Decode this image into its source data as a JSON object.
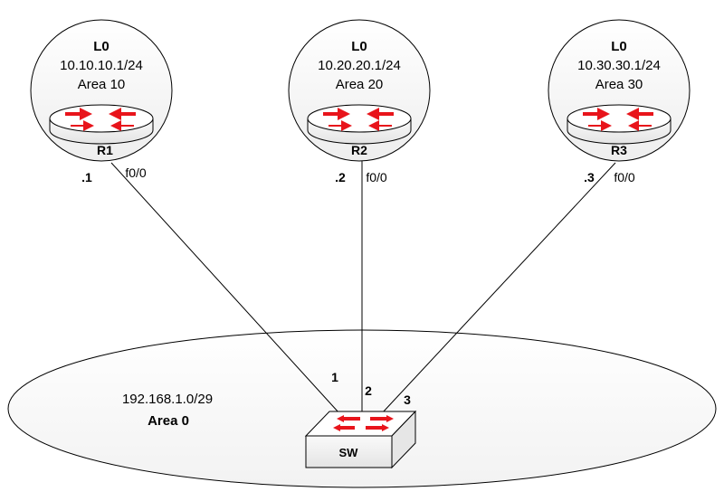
{
  "area0": {
    "network": "192.168.1.0/29",
    "name": "Area 0"
  },
  "routers": [
    {
      "name": "R1",
      "loopback": "L0",
      "lo_ip": "10.10.10.1/24",
      "lo_area": "Area 10",
      "host_octet": ".1",
      "interface": "f0/0",
      "switch_port": "1"
    },
    {
      "name": "R2",
      "loopback": "L0",
      "lo_ip": "10.20.20.1/24",
      "lo_area": "Area 20",
      "host_octet": ".2",
      "interface": "f0/0",
      "switch_port": "2"
    },
    {
      "name": "R3",
      "loopback": "L0",
      "lo_ip": "10.30.30.1/24",
      "lo_area": "Area 30",
      "host_octet": ".3",
      "interface": "f0/0",
      "switch_port": "3"
    }
  ],
  "switch": {
    "name": "SW"
  },
  "colors": {
    "arrow": "#e8141b",
    "area_fill": "#f7f7f7",
    "stroke": "#000000"
  }
}
